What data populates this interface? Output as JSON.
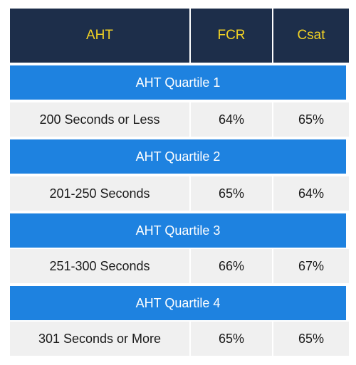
{
  "chart_data": {
    "type": "table",
    "columns": [
      "AHT",
      "FCR",
      "Csat"
    ],
    "groups": [
      {
        "label": "AHT Quartile 1",
        "row": [
          "200 Seconds or Less",
          "64%",
          "65%"
        ]
      },
      {
        "label": "AHT Quartile 2",
        "row": [
          "201-250 Seconds",
          "65%",
          "64%"
        ]
      },
      {
        "label": "AHT Quartile 3",
        "row": [
          "251-300 Seconds",
          "66%",
          "67%"
        ]
      },
      {
        "label": "AHT Quartile 4",
        "row": [
          "301 Seconds or More",
          "65%",
          "65%"
        ]
      }
    ]
  },
  "colors": {
    "header_bg": "#1d2e4a",
    "header_text": "#f2d224",
    "band_bg": "#1e82e0",
    "band_text": "#ffffff",
    "cell_bg": "#f0f0f0",
    "cell_text": "#1a1a1a"
  }
}
